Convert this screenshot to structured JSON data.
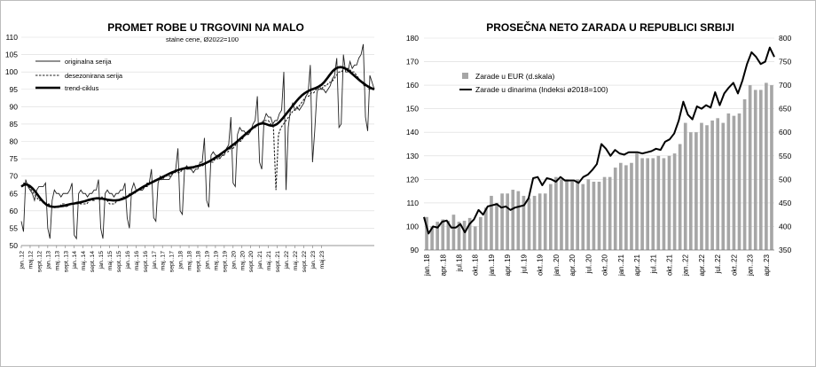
{
  "chart_data": [
    {
      "type": "line",
      "title": "PROMET ROBE U TRGOVINI NA MALO",
      "subtitle": "stalne cene, Ø2022=100",
      "ylim": [
        50,
        110
      ],
      "yticks": [
        50,
        55,
        60,
        65,
        70,
        75,
        80,
        85,
        90,
        95,
        100,
        105,
        110
      ],
      "x_start": "2012-01",
      "x_tick_labels": [
        "jan..12",
        "maj.12",
        "sept..12",
        "jan..13",
        "maj..13",
        "sept..13",
        "jan..14",
        "maj..14",
        "sept..14",
        "jan..15",
        "maj..15",
        "sept..15",
        "jan..16",
        "maj..16",
        "sept..16",
        "jan..17",
        "maj..17",
        "sept..17",
        "jan..18",
        "maj..18",
        "sept..18",
        "jan..19",
        "maj..19",
        "sept..19",
        "jan..20",
        "maj..20",
        "sept..20",
        "jan..21",
        "maj..21",
        "sept..21",
        "jan..22",
        "maj..22",
        "sept..22",
        "jan..23",
        "maj.23"
      ],
      "legend_position": "top-left",
      "series": [
        {
          "name": "originalna serija",
          "style": "thin",
          "values": [
            57,
            54,
            69,
            67,
            66,
            65,
            63,
            66,
            67,
            67,
            67,
            68,
            55,
            52,
            63,
            66,
            65,
            65,
            64,
            65,
            65,
            65,
            66,
            68,
            53,
            52,
            65,
            66,
            65,
            65,
            64,
            65,
            65,
            66,
            66,
            69,
            55,
            52,
            65,
            66,
            65,
            65,
            64,
            65,
            65,
            66,
            66,
            68,
            58,
            55,
            66,
            68,
            66,
            66,
            66,
            66,
            67,
            68,
            68,
            72,
            58,
            57,
            68,
            70,
            69,
            69,
            69,
            69,
            70,
            71,
            72,
            78,
            60,
            59,
            72,
            73,
            72,
            72,
            71,
            72,
            72,
            74,
            74,
            81,
            63,
            61,
            76,
            77,
            76,
            76,
            75,
            76,
            76,
            78,
            79,
            87,
            68,
            67,
            82,
            84,
            83,
            83,
            82,
            82,
            83,
            85,
            86,
            93,
            74,
            72,
            86,
            88,
            87,
            87,
            85,
            86,
            86,
            88,
            89,
            100,
            66,
            84,
            89,
            91,
            89,
            90,
            89,
            90,
            91,
            93,
            94,
            102,
            74,
            83,
            94,
            96,
            95,
            95,
            94,
            95,
            96,
            98,
            99,
            104,
            84,
            85,
            105,
            100,
            100,
            103,
            101,
            102,
            102,
            104,
            105,
            108,
            87,
            83,
            99,
            97,
            95
          ]
        },
        {
          "name": "desezonirana serija",
          "style": "dashed",
          "values": [
            67,
            68,
            68,
            67,
            66,
            65,
            64,
            63,
            63,
            62,
            62,
            62,
            61,
            61,
            61,
            61,
            62,
            62,
            61,
            62,
            62,
            62,
            62,
            62,
            62,
            62,
            62,
            63,
            63,
            63,
            64,
            63,
            64,
            63,
            63,
            62,
            62,
            62,
            63,
            63,
            64,
            64,
            64,
            65,
            65,
            65,
            66,
            66,
            66,
            67,
            67,
            68,
            68,
            69,
            69,
            69,
            69,
            70,
            70,
            70,
            71,
            71,
            71,
            71,
            72,
            72,
            72,
            72,
            72,
            73,
            73,
            73,
            73,
            74,
            74,
            74,
            74,
            75,
            75,
            76,
            76,
            77,
            77,
            78,
            78,
            79,
            80,
            80,
            81,
            82,
            82,
            83,
            84,
            84,
            85,
            85,
            86,
            86,
            86,
            85,
            84,
            66,
            82,
            84,
            85,
            86,
            87,
            88,
            89,
            89,
            90,
            91,
            92,
            93,
            93,
            94,
            94,
            95,
            95,
            95,
            96,
            96,
            97,
            97,
            98,
            99,
            100,
            100,
            101,
            101,
            101,
            100,
            100,
            99,
            98,
            97,
            96,
            96,
            95,
            95,
            95
          ]
        },
        {
          "name": "trend-ciklus",
          "style": "thick",
          "values": [
            67,
            67.5,
            67.6,
            67.2,
            66.5,
            65.6,
            64.5,
            63.4,
            62.5,
            61.8,
            61.4,
            61.2,
            61.1,
            61.2,
            61.3,
            61.4,
            61.6,
            61.8,
            62,
            62.1,
            62.3,
            62.4,
            62.6,
            62.8,
            63.1,
            63.3,
            63.5,
            63.6,
            63.6,
            63.5,
            63.4,
            63.2,
            63.1,
            63,
            63,
            63.1,
            63.3,
            63.6,
            64,
            64.5,
            65,
            65.5,
            66,
            66.5,
            67,
            67.4,
            67.8,
            68.2,
            68.6,
            69,
            69.4,
            69.8,
            70.2,
            70.6,
            71,
            71.3,
            71.6,
            71.9,
            72.1,
            72.3,
            72.4,
            72.5,
            72.6,
            72.8,
            73,
            73.3,
            73.6,
            74,
            74.4,
            74.9,
            75.4,
            75.9,
            76.5,
            77.1,
            77.7,
            78.3,
            78.9,
            79.5,
            80.2,
            80.9,
            81.6,
            82.3,
            83,
            83.7,
            84.3,
            84.8,
            85.1,
            85.2,
            85,
            84.7,
            84.5,
            84.6,
            85,
            85.7,
            86.6,
            87.6,
            88.6,
            89.6,
            90.6,
            91.6,
            92.5,
            93.3,
            93.9,
            94.4,
            94.8,
            95.1,
            95.4,
            95.8,
            96.3,
            97.1,
            98.1,
            99.2,
            100.2,
            100.9,
            101.3,
            101.4,
            101.2,
            100.8,
            100.2,
            99.5,
            98.8,
            98.1,
            97.4,
            96.8,
            96.2,
            95.7,
            95.3,
            95
          ]
        }
      ]
    },
    {
      "type": "bar+line",
      "title": "PROSEČNA NETO ZARADA U REPUBLICI SRBIJI",
      "ylim_left": [
        90,
        180
      ],
      "yticks_left": [
        90,
        100,
        110,
        120,
        130,
        140,
        150,
        160,
        170,
        180
      ],
      "ylim_right": [
        350,
        800
      ],
      "yticks_right": [
        350,
        400,
        450,
        500,
        550,
        600,
        650,
        700,
        750,
        800
      ],
      "x_start": "2018-01",
      "x_tick_labels": [
        "jan..18",
        "apr..18",
        "jul.18",
        "okt..18",
        "jan..19",
        "apr..19",
        "jul..19",
        "okt..19",
        "jan..20",
        "apr..20",
        "jul..20",
        "okt..20",
        "jan..21",
        "apr..21",
        "jul..21",
        "okt..21",
        "jan..22",
        "apr..22",
        "jul..22",
        "okt..22",
        "jan..23",
        "apr..23"
      ],
      "legend_position": "top-left",
      "series": [
        {
          "name": "Zarade u EUR (d.skala)",
          "axis": "right",
          "values": [
            420,
            400,
            410,
            415,
            412,
            425,
            410,
            412,
            418,
            400,
            420,
            440,
            465,
            450,
            470,
            470,
            478,
            475,
            465,
            460,
            465,
            470,
            470,
            490,
            505,
            500,
            500,
            495,
            500,
            490,
            500,
            495,
            495,
            505,
            505,
            525,
            535,
            530,
            535,
            555,
            545,
            545,
            545,
            550,
            545,
            550,
            555,
            575,
            620,
            600,
            600,
            620,
            615,
            625,
            630,
            620,
            640,
            635,
            640,
            670,
            700,
            690,
            690,
            705,
            700
          ]
        },
        {
          "name": "Zarade u dinarima (Indeksi ø2018=100)",
          "axis": "left",
          "values": [
            104,
            97,
            100,
            99.5,
            102,
            102.5,
            99.5,
            99.5,
            101,
            97.5,
            101,
            103,
            107,
            105,
            108.5,
            109,
            109.5,
            108,
            108.5,
            107,
            108,
            108.5,
            109,
            112,
            120.5,
            121,
            117.5,
            120.5,
            120,
            119,
            121,
            119.5,
            119.5,
            119.5,
            118.5,
            121,
            122,
            124,
            126.5,
            135,
            133,
            130,
            132.5,
            131,
            130.5,
            131.5,
            131.5,
            131.5,
            131,
            131.5,
            132,
            133,
            132.5,
            136,
            137,
            139.5,
            145,
            153,
            147.5,
            145.5,
            151,
            150,
            151.5,
            150.5,
            157,
            151.5,
            156.5,
            159,
            161,
            156.5,
            162,
            169,
            174,
            172,
            169,
            170,
            176,
            172
          ]
        }
      ]
    }
  ]
}
